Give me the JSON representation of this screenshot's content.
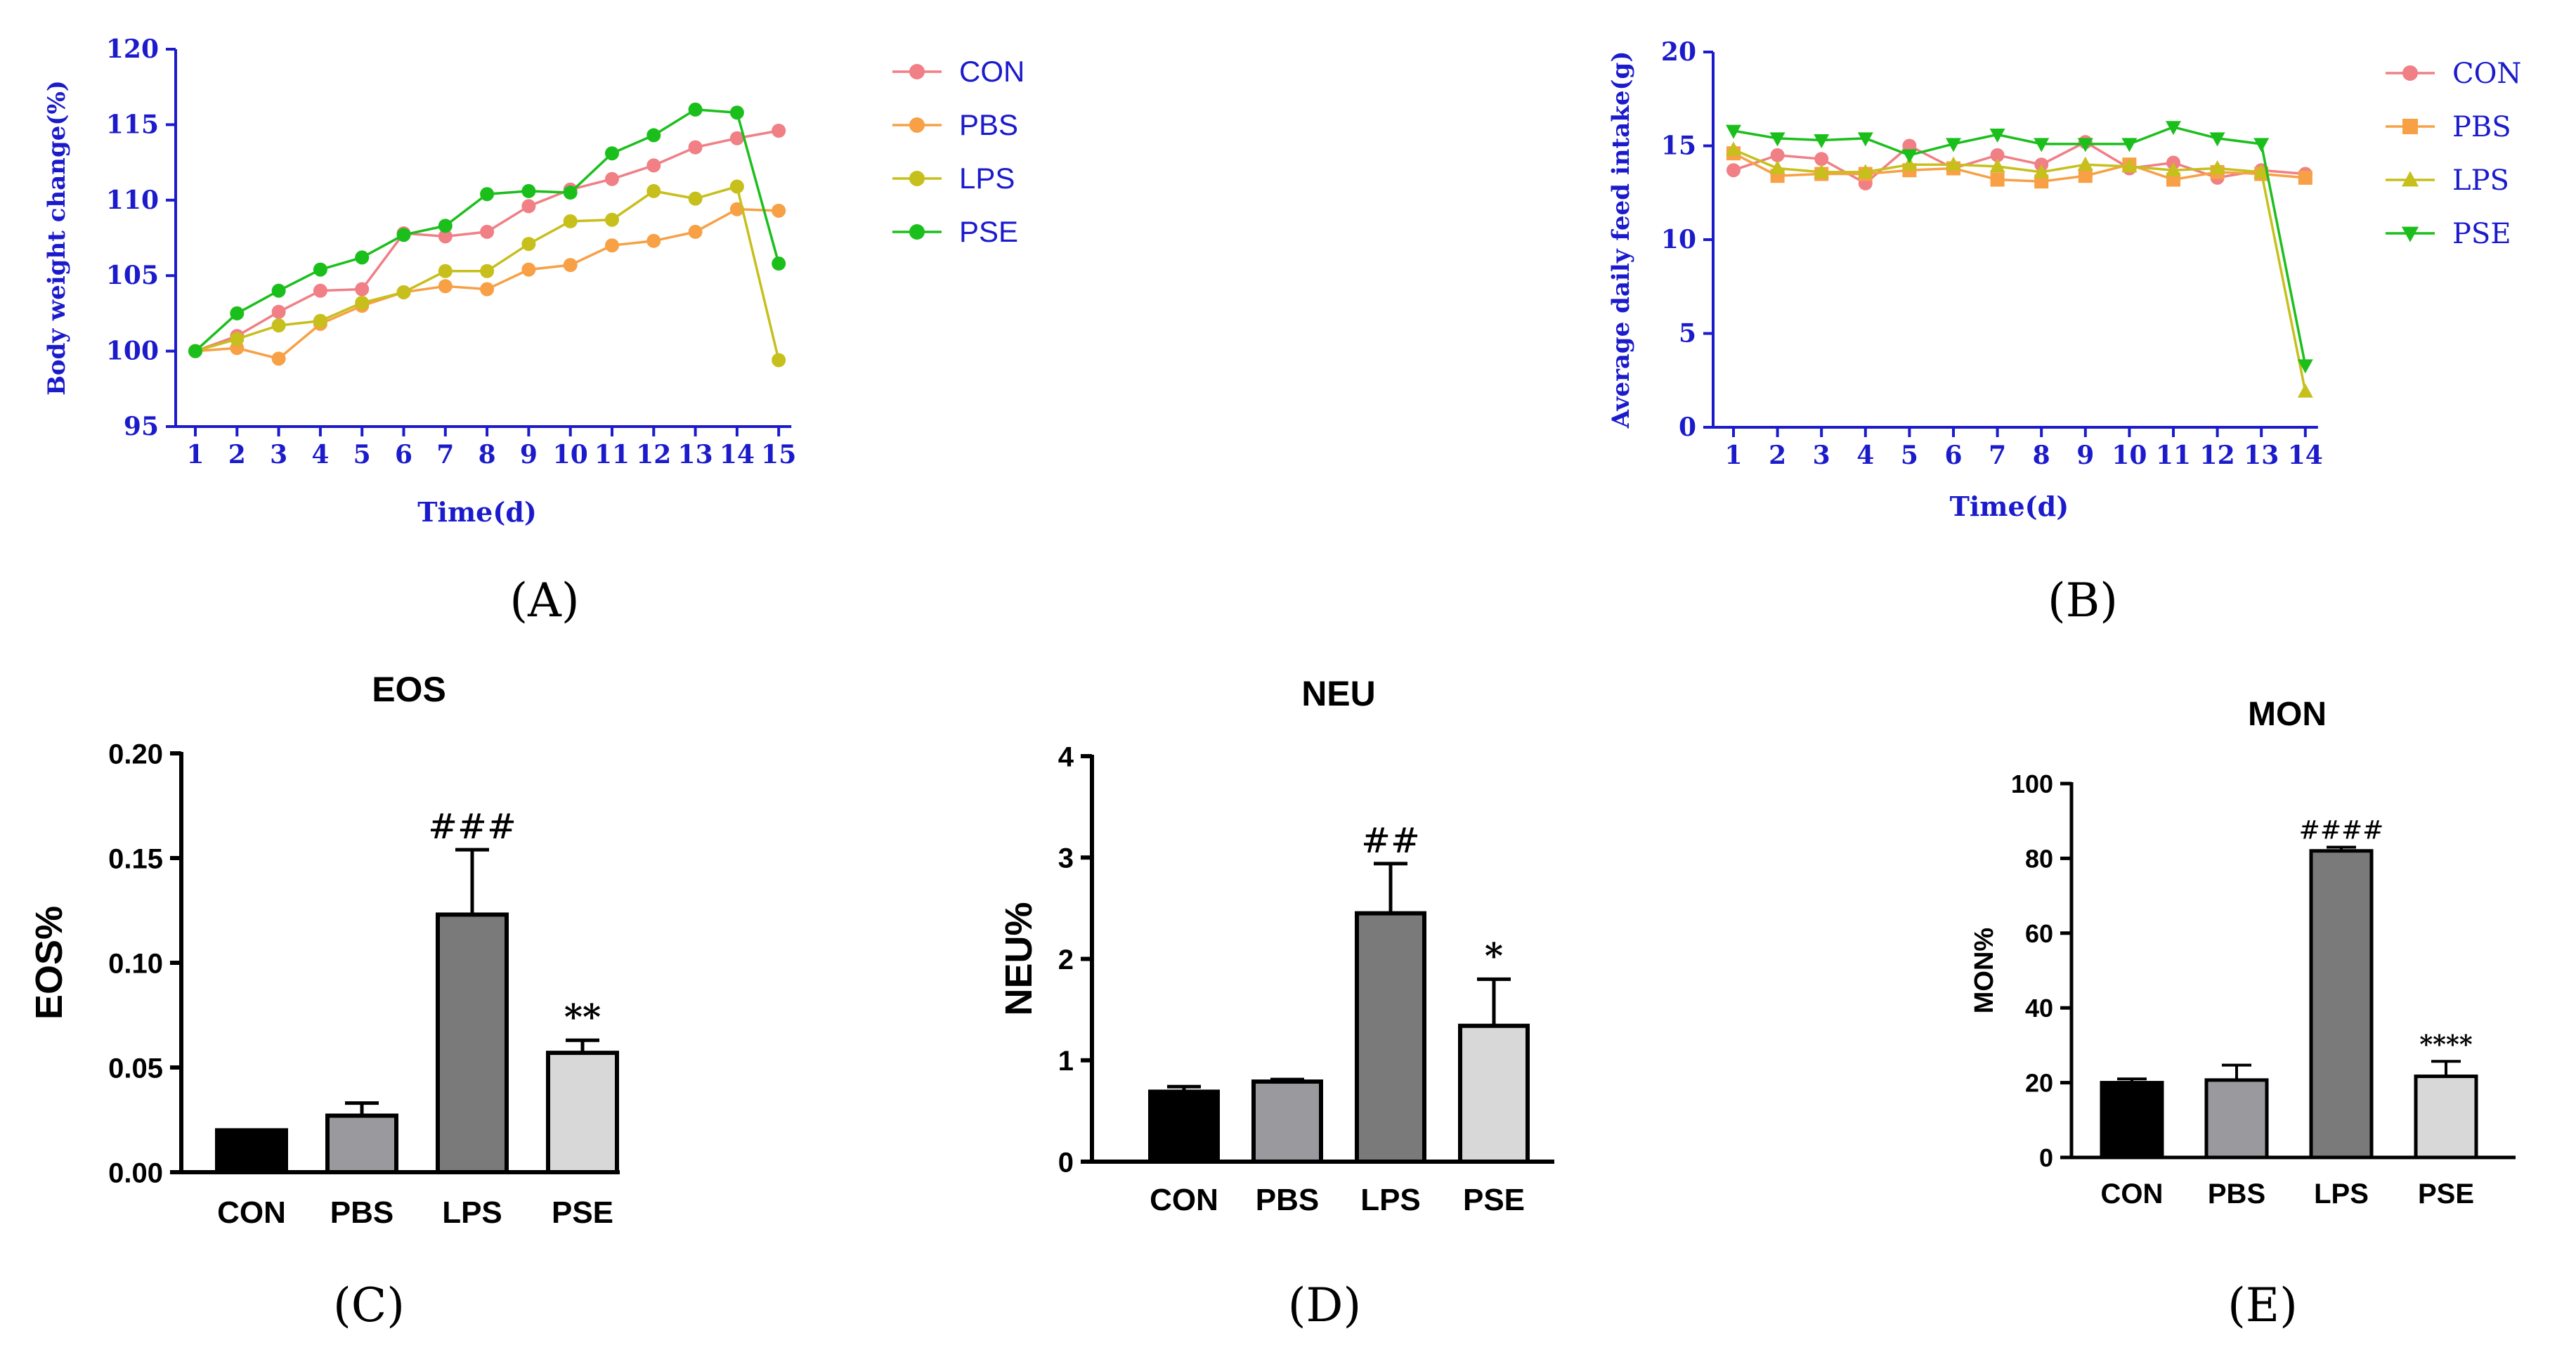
{
  "colors": {
    "CON": "#f07f86",
    "PBS": "#f7a045",
    "LPS": "#c6bf1c",
    "PSE": "#1bbf1b",
    "axis_blue": "#1b1bcc",
    "bar_con": "#000000",
    "bar_pbs": "#9a9a9e",
    "bar_lps": "#7a7a7a",
    "bar_pse": "#d8d8d8"
  },
  "panel_labels": {
    "A": "(A)",
    "B": "(B)",
    "C": "(C)",
    "D": "(D)",
    "E": "(E)"
  },
  "chart_data": [
    {
      "id": "A",
      "type": "line",
      "title": "",
      "xlabel": "Time(d)",
      "ylabel": "Body weight change(%)",
      "ylim": [
        95,
        120
      ],
      "yticks": [
        95,
        100,
        105,
        110,
        115,
        120
      ],
      "x": [
        1,
        2,
        3,
        4,
        5,
        6,
        7,
        8,
        9,
        10,
        11,
        12,
        13,
        14,
        15
      ],
      "legend": "right",
      "series": [
        {
          "name": "CON",
          "marker": "circle",
          "values": [
            100,
            101.0,
            102.6,
            104.0,
            104.1,
            107.8,
            107.6,
            107.9,
            109.6,
            110.7,
            111.4,
            112.3,
            113.5,
            114.1,
            114.6
          ]
        },
        {
          "name": "PBS",
          "marker": "circle",
          "values": [
            100,
            100.2,
            99.5,
            101.8,
            103.0,
            103.9,
            104.3,
            104.1,
            105.4,
            105.7,
            107.0,
            107.3,
            107.9,
            109.4,
            109.3
          ]
        },
        {
          "name": "LPS",
          "marker": "circle",
          "values": [
            100,
            100.8,
            101.7,
            102.0,
            103.2,
            103.9,
            105.3,
            105.3,
            107.1,
            108.6,
            108.7,
            110.6,
            110.1,
            110.9,
            99.4
          ]
        },
        {
          "name": "PSE",
          "marker": "circle",
          "values": [
            100,
            102.5,
            104.0,
            105.4,
            106.2,
            107.7,
            108.3,
            110.4,
            110.6,
            110.5,
            113.1,
            114.3,
            116.0,
            115.8,
            105.8
          ]
        }
      ]
    },
    {
      "id": "B",
      "type": "line",
      "title": "",
      "xlabel": "Time(d)",
      "ylabel": "Average daily feed intake(g)",
      "ylim": [
        0,
        20
      ],
      "yticks": [
        0,
        5,
        10,
        15,
        20
      ],
      "x": [
        1,
        2,
        3,
        4,
        5,
        6,
        7,
        8,
        9,
        10,
        11,
        12,
        13,
        14
      ],
      "legend": "right",
      "series": [
        {
          "name": "CON",
          "marker": "circle",
          "values": [
            13.7,
            14.5,
            14.3,
            13.0,
            15.0,
            13.8,
            14.5,
            14.0,
            15.2,
            13.8,
            14.1,
            13.3,
            13.7,
            13.5
          ]
        },
        {
          "name": "PBS",
          "marker": "square",
          "values": [
            14.6,
            13.4,
            13.5,
            13.5,
            13.7,
            13.8,
            13.2,
            13.1,
            13.4,
            14.0,
            13.2,
            13.6,
            13.5,
            13.3
          ]
        },
        {
          "name": "LPS",
          "marker": "triangle-up",
          "values": [
            14.8,
            13.8,
            13.6,
            13.6,
            14.0,
            14.0,
            13.9,
            13.6,
            14.0,
            13.9,
            13.7,
            13.8,
            13.6,
            1.9
          ]
        },
        {
          "name": "PSE",
          "marker": "triangle-down",
          "values": [
            15.8,
            15.4,
            15.3,
            15.4,
            14.5,
            15.1,
            15.6,
            15.1,
            15.1,
            15.1,
            16.0,
            15.4,
            15.1,
            3.3
          ]
        }
      ]
    },
    {
      "id": "C",
      "type": "bar",
      "title": "EOS",
      "ylabel": "EOS%",
      "ylim": [
        0,
        0.2
      ],
      "yticks": [
        "0.00",
        "0.05",
        "0.10",
        "0.15",
        "0.20"
      ],
      "categories": [
        "CON",
        "PBS",
        "LPS",
        "PSE"
      ],
      "values": [
        0.02,
        0.027,
        0.123,
        0.057
      ],
      "errors": [
        0.0,
        0.006,
        0.031,
        0.006
      ],
      "annotations": [
        "",
        "",
        "###",
        "**"
      ]
    },
    {
      "id": "D",
      "type": "bar",
      "title": "NEU",
      "ylabel": "NEU%",
      "ylim": [
        0,
        4
      ],
      "yticks": [
        "0",
        "1",
        "2",
        "3",
        "4"
      ],
      "categories": [
        "CON",
        "PBS",
        "LPS",
        "PSE"
      ],
      "values": [
        0.69,
        0.79,
        2.45,
        1.34
      ],
      "errors": [
        0.05,
        0.02,
        0.49,
        0.46
      ],
      "annotations": [
        "",
        "",
        "##",
        "*"
      ]
    },
    {
      "id": "E",
      "type": "bar",
      "title": "MON",
      "ylabel": "MON%",
      "ylim": [
        0,
        100
      ],
      "yticks": [
        "0",
        "20",
        "40",
        "60",
        "80",
        "100"
      ],
      "categories": [
        "CON",
        "PBS",
        "LPS",
        "PSE"
      ],
      "values": [
        20.0,
        20.7,
        82.0,
        21.7
      ],
      "errors": [
        1.0,
        4.0,
        1.0,
        4.0
      ],
      "annotations": [
        "",
        "",
        "####",
        "****"
      ]
    }
  ]
}
